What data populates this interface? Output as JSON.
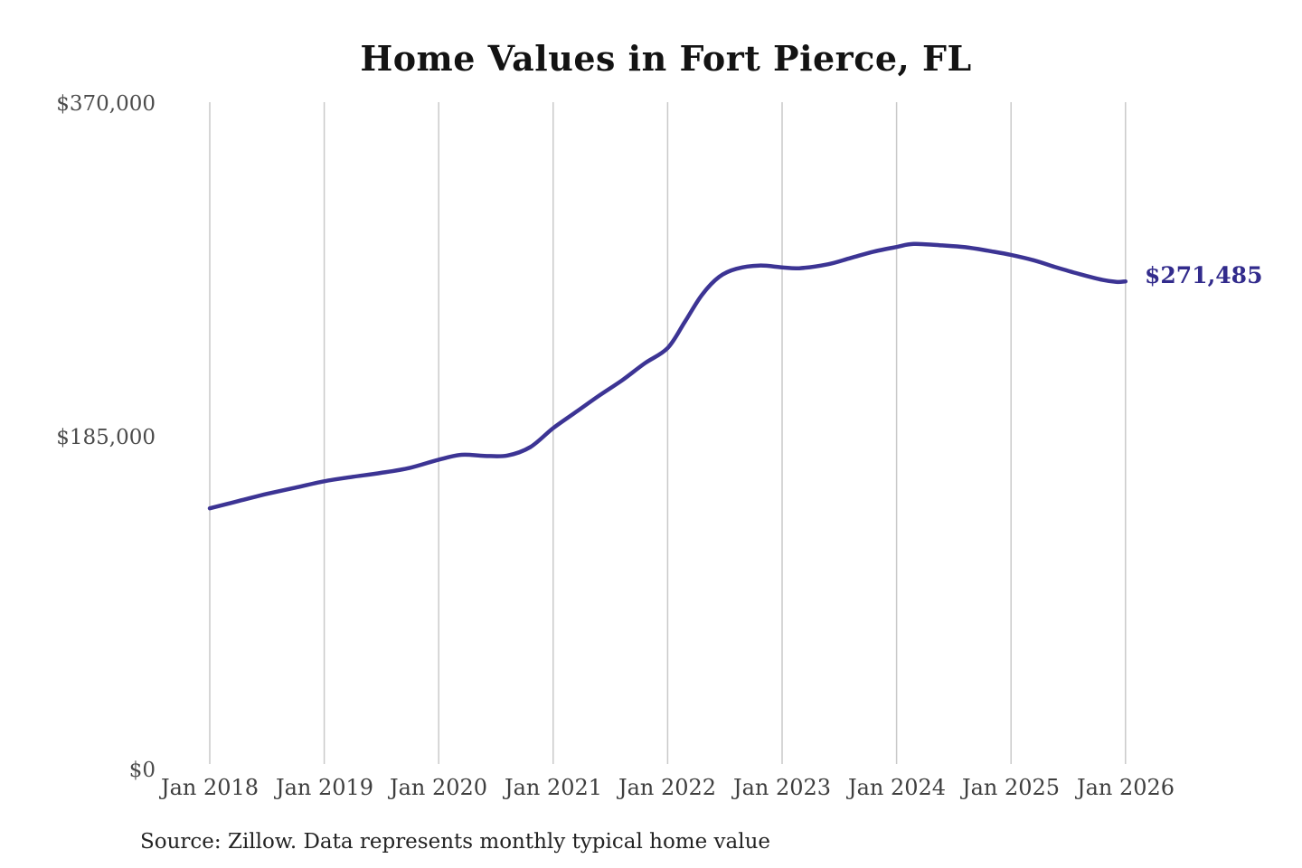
{
  "chart_data": {
    "type": "line",
    "title": "Home Values in Fort Pierce, FL",
    "xlabel": "",
    "ylabel": "",
    "legend": "none",
    "grid": "vertical-only",
    "xlim": [
      2018,
      2026
    ],
    "ylim": [
      0,
      370000
    ],
    "y_ticks": [
      {
        "value": 370000,
        "label": "$370,000"
      },
      {
        "value": 185000,
        "label": "$185,000"
      },
      {
        "value": 0,
        "label": "$0"
      }
    ],
    "x_ticks": [
      {
        "year": 2018,
        "label": "Jan 2018"
      },
      {
        "year": 2019,
        "label": "Jan 2019"
      },
      {
        "year": 2020,
        "label": "Jan 2020"
      },
      {
        "year": 2021,
        "label": "Jan 2021"
      },
      {
        "year": 2022,
        "label": "Jan 2022"
      },
      {
        "year": 2023,
        "label": "Jan 2023"
      },
      {
        "year": 2024,
        "label": "Jan 2024"
      },
      {
        "year": 2025,
        "label": "Jan 2025"
      },
      {
        "year": 2026,
        "label": "Jan 2026"
      }
    ],
    "series": [
      {
        "name": "Monthly typical home value",
        "points": [
          [
            2018.0,
            145500
          ],
          [
            2018.25,
            149500
          ],
          [
            2018.5,
            153500
          ],
          [
            2018.75,
            157000
          ],
          [
            2019.0,
            160500
          ],
          [
            2019.25,
            163000
          ],
          [
            2019.5,
            165200
          ],
          [
            2019.75,
            168000
          ],
          [
            2020.0,
            172500
          ],
          [
            2020.2,
            175200
          ],
          [
            2020.4,
            174600
          ],
          [
            2020.6,
            174800
          ],
          [
            2020.8,
            179500
          ],
          [
            2021.0,
            190000
          ],
          [
            2021.2,
            199000
          ],
          [
            2021.4,
            208000
          ],
          [
            2021.6,
            216500
          ],
          [
            2021.8,
            226000
          ],
          [
            2022.0,
            234500
          ],
          [
            2022.15,
            249000
          ],
          [
            2022.3,
            264000
          ],
          [
            2022.45,
            274000
          ],
          [
            2022.6,
            278500
          ],
          [
            2022.8,
            280300
          ],
          [
            2023.0,
            279300
          ],
          [
            2023.15,
            278800
          ],
          [
            2023.4,
            281000
          ],
          [
            2023.6,
            284500
          ],
          [
            2023.8,
            288000
          ],
          [
            2024.0,
            290600
          ],
          [
            2024.15,
            292300
          ],
          [
            2024.4,
            291500
          ],
          [
            2024.6,
            290500
          ],
          [
            2024.8,
            288500
          ],
          [
            2025.0,
            286200
          ],
          [
            2025.2,
            283200
          ],
          [
            2025.4,
            279200
          ],
          [
            2025.6,
            275500
          ],
          [
            2025.8,
            272300
          ],
          [
            2025.92,
            271200
          ],
          [
            2026.0,
            271485
          ]
        ]
      }
    ],
    "end_value": 271485,
    "end_label": "$271,485",
    "source_note": "Source: Zillow. Data represents monthly typical home value",
    "colors": {
      "line": "#3c3494",
      "grid": "#c9c9c9",
      "end_label": "#322b8c"
    }
  }
}
